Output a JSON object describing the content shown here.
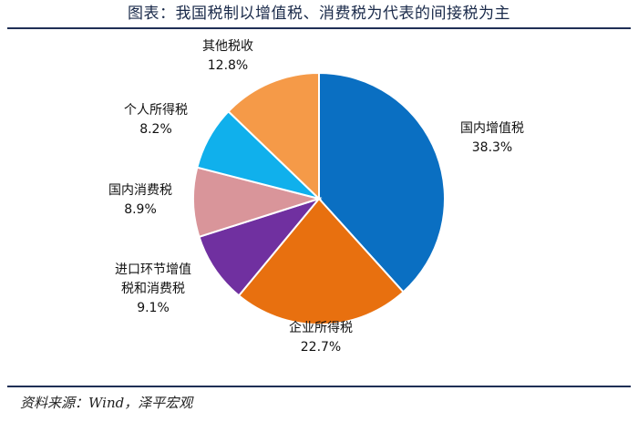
{
  "title": "图表：我国税制以增值税、消费税为代表的间接税为主",
  "source": "资料来源：Wind，泽平宏观",
  "chart_data": {
    "type": "pie",
    "start": "12 o'clock, clockwise",
    "slices": [
      {
        "label": [
          "国内增值税"
        ],
        "value": 38.3,
        "value_text": "38.3%",
        "color": "#0a6fc2"
      },
      {
        "label": [
          "企业所得税"
        ],
        "value": 22.7,
        "value_text": "22.7%",
        "color": "#e8700f"
      },
      {
        "label": [
          "进口环节增值",
          "税和消费税"
        ],
        "value": 9.1,
        "value_text": "9.1%",
        "color": "#7030a0"
      },
      {
        "label": [
          "国内消费税"
        ],
        "value": 8.9,
        "value_text": "8.9%",
        "color": "#d9959a"
      },
      {
        "label": [
          "个人所得税"
        ],
        "value": 8.2,
        "value_text": "8.2%",
        "color": "#10b0ec"
      },
      {
        "label": [
          "其他税收"
        ],
        "value": 12.8,
        "value_text": "12.8%",
        "color": "#f59a48"
      }
    ]
  }
}
